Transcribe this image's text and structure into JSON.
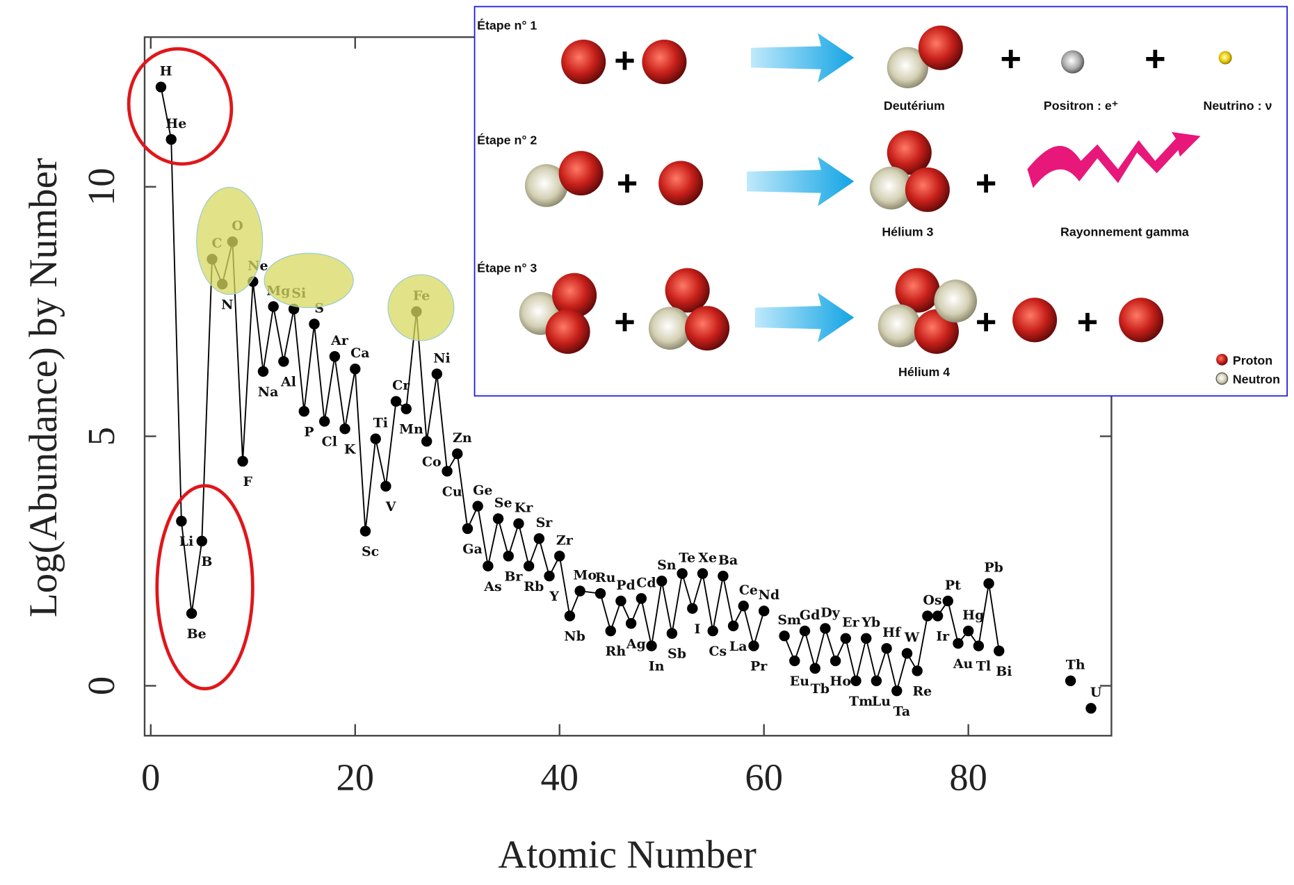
{
  "chart_data": {
    "type": "line",
    "x_label": "Atomic Number",
    "y_label": "Log(Abundance) by Number",
    "color": "#000000",
    "xlim": [
      -0.6,
      94
    ],
    "ylim": [
      -1,
      13
    ],
    "xticks": [
      0,
      20,
      40,
      60,
      80
    ],
    "yticks": [
      0,
      5,
      10
    ],
    "x": [
      1,
      2,
      3,
      4,
      5,
      6,
      7,
      8,
      9,
      10,
      11,
      12,
      13,
      14,
      15,
      16,
      17,
      18,
      19,
      20,
      21,
      22,
      23,
      24,
      25,
      26,
      27,
      28,
      29,
      30,
      31,
      32,
      33,
      34,
      35,
      36,
      37,
      38,
      39,
      40,
      41,
      42,
      44,
      45,
      46,
      47,
      48,
      49,
      50,
      51,
      52,
      53,
      54,
      55,
      56,
      57,
      58,
      59,
      60,
      61,
      62,
      63,
      64,
      65,
      66,
      67,
      68,
      69,
      70,
      71,
      72,
      73,
      74,
      75,
      76,
      77,
      78,
      79,
      80,
      81,
      82,
      83,
      84,
      90,
      91,
      92
    ],
    "values": [
      12.0,
      10.95,
      3.3,
      1.45,
      2.9,
      8.55,
      8.05,
      8.9,
      4.5,
      8.1,
      6.3,
      7.6,
      6.5,
      7.55,
      5.5,
      7.25,
      5.3,
      6.6,
      5.15,
      6.35,
      3.1,
      4.95,
      4.0,
      5.7,
      5.55,
      7.5,
      4.9,
      6.25,
      4.3,
      4.65,
      3.15,
      3.6,
      2.4,
      3.35,
      2.6,
      3.25,
      2.4,
      2.95,
      2.2,
      2.6,
      1.4,
      1.9,
      1.85,
      1.1,
      1.7,
      1.25,
      1.75,
      0.8,
      2.1,
      1.05,
      2.25,
      1.55,
      2.25,
      1.1,
      2.2,
      1.2,
      1.6,
      0.8,
      1.5,
      null,
      1.0,
      0.5,
      1.1,
      0.35,
      1.15,
      0.5,
      0.95,
      0.1,
      0.95,
      0.1,
      0.75,
      -0.1,
      0.65,
      0.3,
      1.4,
      1.4,
      1.7,
      0.85,
      1.1,
      0.8,
      2.05,
      0.7,
      null,
      0.1,
      null,
      -0.45
    ],
    "point_labels": [
      "H",
      "He",
      "Li",
      "Be",
      "B",
      "C",
      "N",
      "O",
      "F",
      "Ne",
      "Na",
      "Mg",
      "Al",
      "Si",
      "P",
      "S",
      "Cl",
      "Ar",
      "K",
      "Ca",
      "Sc",
      "Ti",
      "V",
      "Cr",
      "Mn",
      "Fe",
      "Co",
      "Ni",
      "Cu",
      "Zn",
      "Ga",
      "Ge",
      "As",
      "Se",
      "Br",
      "Kr",
      "Rb",
      "Sr",
      "Y",
      "Zr",
      "Nb",
      "Mo",
      "Ru",
      "Rh",
      "Pd",
      "Ag",
      "Cd",
      "In",
      "Sn",
      "Sb",
      "Te",
      "I",
      "Xe",
      "Cs",
      "Ba",
      "La",
      "Ce",
      "Pr",
      "Nd",
      null,
      "Sm",
      "Eu",
      "Gd",
      "Tb",
      "Dy",
      "Ho",
      "Er",
      "Tm",
      "Yb",
      "Lu",
      "Hf",
      "Ta",
      "W",
      "Re",
      "Os",
      "Ir",
      "Pt",
      "Au",
      "Hg",
      "Tl",
      "Pb",
      "Bi",
      null,
      "Th",
      null,
      "U"
    ]
  },
  "diagram": {
    "steps": [
      {
        "label": "Étape n° 1",
        "products": [
          "Deutérium",
          "Positron : e⁺",
          "Neutrino : ν"
        ]
      },
      {
        "label": "Étape n° 2",
        "products": [
          "Hélium 3",
          "Rayonnement gamma"
        ]
      },
      {
        "label": "Étape n° 3",
        "products": [
          "Hélium 4"
        ]
      }
    ],
    "legend": [
      "Proton",
      "Neutron"
    ]
  }
}
